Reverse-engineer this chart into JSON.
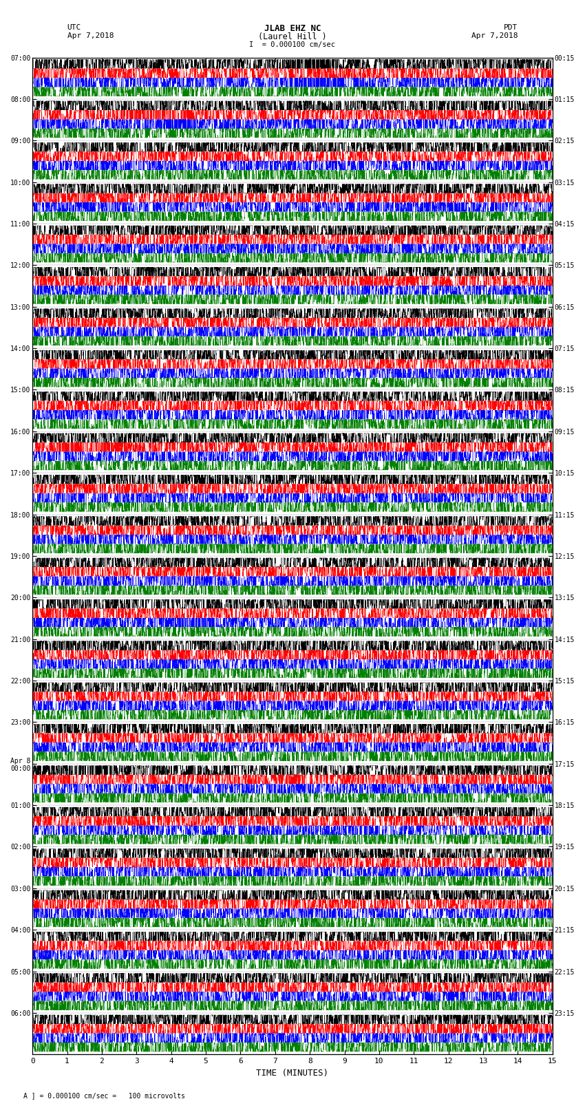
{
  "title_line1": "JLAB EHZ NC",
  "title_line2": "(Laurel Hill )",
  "scale_text": "I  = 0.000100 cm/sec",
  "left_label_top": "UTC",
  "left_label_date": "Apr 7,2018",
  "right_label_top": "PDT",
  "right_label_date": "Apr 7,2018",
  "bottom_label": "TIME (MINUTES)",
  "footnote": "A ] = 0.000100 cm/sec =   100 microvolts",
  "utc_labels": [
    "07:00",
    "08:00",
    "09:00",
    "10:00",
    "11:00",
    "12:00",
    "13:00",
    "14:00",
    "15:00",
    "16:00",
    "17:00",
    "18:00",
    "19:00",
    "20:00",
    "21:00",
    "22:00",
    "23:00",
    "Apr 8\n00:00",
    "01:00",
    "02:00",
    "03:00",
    "04:00",
    "05:00",
    "06:00"
  ],
  "pdt_labels": [
    "00:15",
    "01:15",
    "02:15",
    "03:15",
    "04:15",
    "05:15",
    "06:15",
    "07:15",
    "08:15",
    "09:15",
    "10:15",
    "11:15",
    "12:15",
    "13:15",
    "14:15",
    "15:15",
    "16:15",
    "17:15",
    "18:15",
    "19:15",
    "20:15",
    "21:15",
    "22:15",
    "23:15"
  ],
  "colors": [
    "black",
    "red",
    "blue",
    "green"
  ],
  "n_rows": 24,
  "n_traces_per_row": 4,
  "x_min": 0,
  "x_max": 15,
  "x_ticks": [
    0,
    1,
    2,
    3,
    4,
    5,
    6,
    7,
    8,
    9,
    10,
    11,
    12,
    13,
    14,
    15
  ],
  "background_color": "white",
  "seed": 42
}
